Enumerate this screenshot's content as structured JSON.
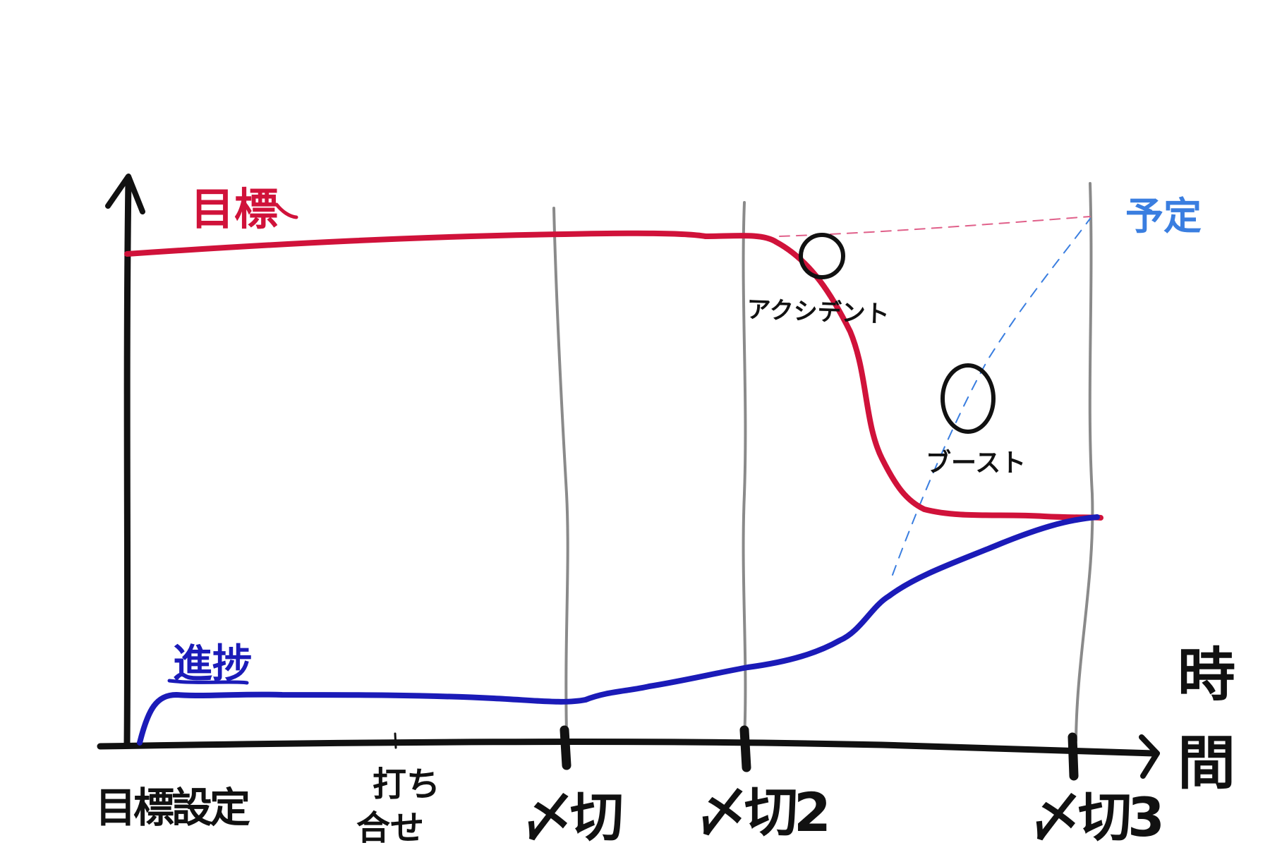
{
  "labels": {
    "target": "目標",
    "progress": "進捗",
    "plan": "予定",
    "time_axis": "時間",
    "accident": "アクシデント",
    "boost": "ブースト"
  },
  "milestones": [
    {
      "label": "目標設定"
    },
    {
      "label": "打ち合せ"
    },
    {
      "label": "〆切"
    },
    {
      "label": "〆切2"
    },
    {
      "label": "〆切3"
    }
  ],
  "colors": {
    "target": "#d0123a",
    "progress": "#1b1bb8",
    "plan": "#3a7ee0",
    "deadline_line": "#8a8a8a",
    "axis": "#111111"
  }
}
